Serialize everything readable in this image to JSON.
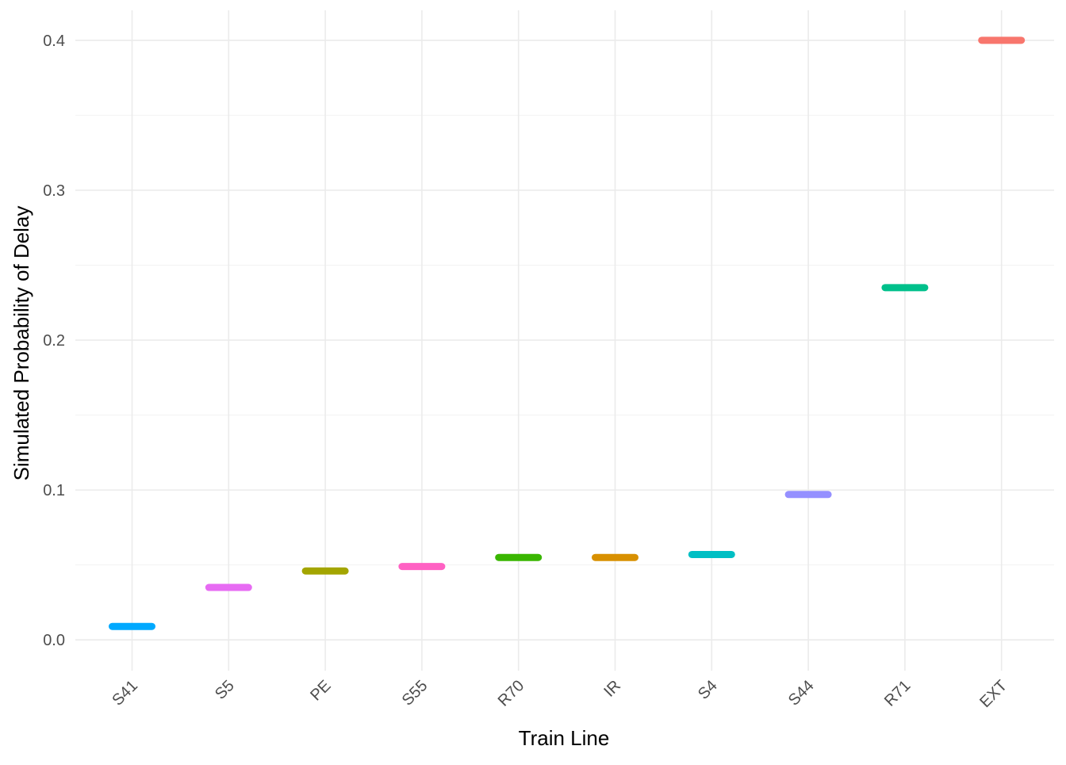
{
  "chart_data": {
    "type": "scatter",
    "xlabel": "Train Line",
    "ylabel": "Simulated Probability of Delay",
    "categories": [
      "S41",
      "S5",
      "PE",
      "S55",
      "R70",
      "IR",
      "S4",
      "S44",
      "R71",
      "EXT"
    ],
    "values": [
      0.009,
      0.035,
      0.046,
      0.049,
      0.055,
      0.055,
      0.057,
      0.097,
      0.235,
      0.4
    ],
    "colors": [
      "#00A9FF",
      "#E76BF3",
      "#A3A500",
      "#FF61C3",
      "#39B600",
      "#D89000",
      "#00BFC4",
      "#9590FF",
      "#00C08B",
      "#F8766D"
    ],
    "ylim": [
      -0.0205,
      0.42
    ],
    "yticks": [
      0.0,
      0.1,
      0.2,
      0.3,
      0.4
    ],
    "ytick_labels": [
      "0.0",
      "0.1",
      "0.2",
      "0.3",
      "0.4"
    ],
    "grid": true,
    "legend": "none"
  }
}
